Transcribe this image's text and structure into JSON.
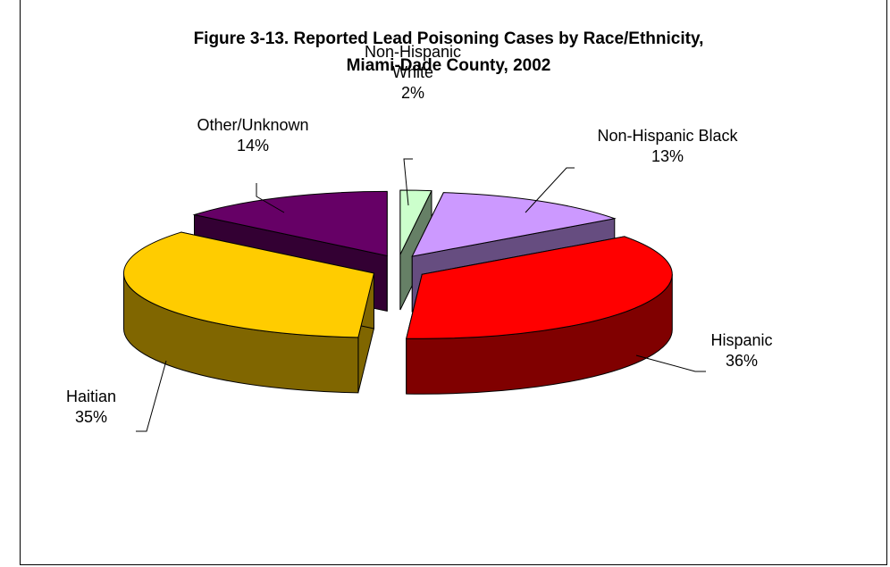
{
  "chart_data": {
    "type": "pie",
    "title_lines": [
      "Figure 3-13. Reported Lead Poisoning Cases by Race/Ethnicity,",
      "Miami-Dade County, 2002"
    ],
    "slices": [
      {
        "label_lines": [
          "Non-Hispanic",
          "White",
          "2%"
        ],
        "value": 2,
        "color": "#CCFFCC",
        "side_color": "#668066"
      },
      {
        "label_lines": [
          "Non-Hispanic Black",
          "13%"
        ],
        "value": 13,
        "color": "#CC99FF",
        "side_color": "#664D80"
      },
      {
        "label_lines": [
          "Hispanic",
          "36%"
        ],
        "value": 36,
        "color": "#FF0000",
        "side_color": "#800000"
      },
      {
        "label_lines": [
          "Haitian",
          "35%"
        ],
        "value": 35,
        "color": "#FFCC00",
        "side_color": "#806600"
      },
      {
        "label_lines": [
          "Other/Unknown",
          "14%"
        ],
        "value": 14,
        "color": "#660066",
        "side_color": "#330033"
      }
    ]
  }
}
